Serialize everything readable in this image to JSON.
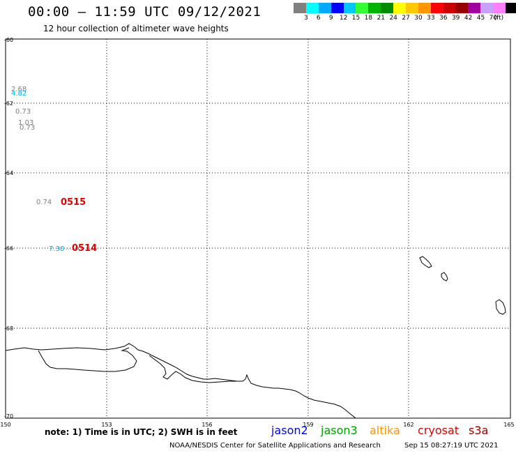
{
  "header": {
    "title": "00:00 – 11:59 UTC 09/12/2021",
    "subtitle": "12 hour collection of altimeter wave heights"
  },
  "scale": {
    "colors": [
      "#808080",
      "#00ffff",
      "#00a8ff",
      "#0000ff",
      "#00c8ff",
      "#33ff33",
      "#00b400",
      "#008c00",
      "#ffff00",
      "#ffc800",
      "#ff9600",
      "#ff0000",
      "#c80000",
      "#960000",
      "#a000a0",
      "#c8a0ff",
      "#ff80ff",
      "#000000"
    ],
    "labels": [
      "3",
      "6",
      "9",
      "12",
      "15",
      "18",
      "21",
      "24",
      "27",
      "30",
      "33",
      "36",
      "39",
      "42",
      "45",
      "70"
    ],
    "unit": "(ft)"
  },
  "map": {
    "lat_labels": [
      "-60",
      "-62",
      "-64",
      "-66",
      "-68",
      "-70"
    ],
    "lon_labels": [
      "150",
      "153",
      "156",
      "159",
      "162",
      "165"
    ]
  },
  "observations": [
    {
      "value": "2.68",
      "color": "#808080"
    },
    {
      "value": "4.82",
      "color": "#00b0ff"
    },
    {
      "value": "0.73",
      "color": "#808080"
    },
    {
      "value": "1.03",
      "color": "#808080"
    },
    {
      "value": "0.73",
      "color": "#808080"
    },
    {
      "value": "0.74",
      "color": "#808080"
    },
    {
      "value": "7.30",
      "color": "#00a8ff"
    }
  ],
  "pass_times": [
    {
      "value": "0515",
      "color": "#e00000"
    },
    {
      "value": "0514",
      "color": "#e00000"
    }
  ],
  "footer": {
    "note": "note: 1) Time is in UTC; 2) SWH is in feet",
    "satellites": [
      {
        "name": "jason2",
        "color": "#0000ff"
      },
      {
        "name": "jason3",
        "color": "#00a000"
      },
      {
        "name": "altika",
        "color": "#ff9600"
      },
      {
        "name": "cryosat",
        "color": "#e00000"
      },
      {
        "name": "s3a",
        "color": "#a00000"
      }
    ],
    "credit": "NOAA/NESDIS Center for Satellite Applications and Research",
    "timestamp": "Sep 15 08:27:19 UTC 2021"
  }
}
